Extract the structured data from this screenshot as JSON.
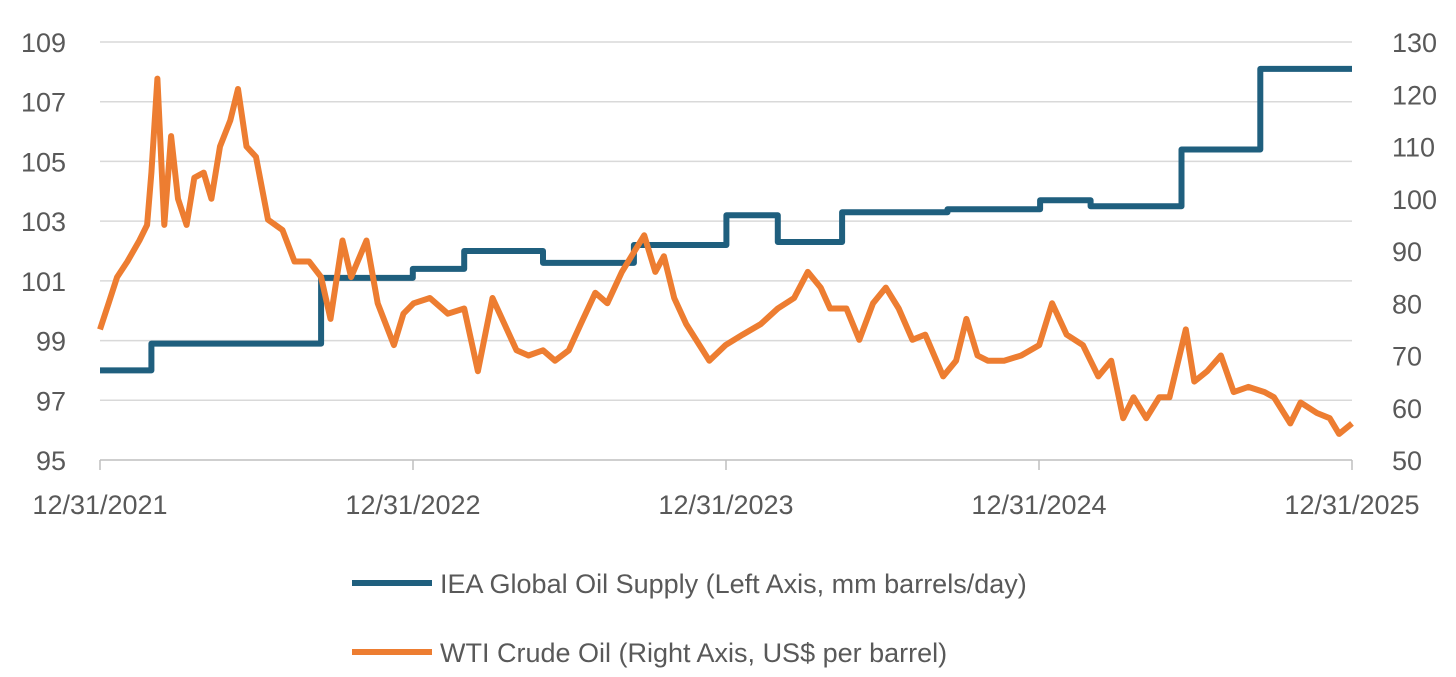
{
  "chart_data": {
    "type": "line",
    "grid": true,
    "x_axis": {
      "type": "date",
      "range": [
        "2021-12-31",
        "2025-12-31"
      ],
      "tick_labels": [
        "12/31/2021",
        "12/31/2022",
        "12/31/2023",
        "12/31/2024",
        "12/31/2025"
      ]
    },
    "y_left": {
      "range": [
        95,
        109
      ],
      "ticks": [
        95,
        97,
        99,
        101,
        103,
        105,
        107,
        109
      ]
    },
    "y_right": {
      "range": [
        50,
        130
      ],
      "ticks": [
        50,
        60,
        70,
        80,
        90,
        100,
        110,
        120,
        130
      ]
    },
    "legend": {
      "placement": "bottom"
    },
    "series": [
      {
        "name": "IEA Global Oil Supply (Left Axis, mm barrels/day)",
        "axis": "left",
        "color": "#1f5f7e",
        "step": true,
        "points": [
          [
            "2021-12-31",
            98.0
          ],
          [
            "2022-03-01",
            98.9
          ],
          [
            "2022-09-15",
            101.1
          ],
          [
            "2022-12-31",
            101.4
          ],
          [
            "2023-03-01",
            102.0
          ],
          [
            "2023-06-01",
            101.6
          ],
          [
            "2023-09-15",
            102.2
          ],
          [
            "2024-01-01",
            103.2
          ],
          [
            "2024-03-01",
            102.3
          ],
          [
            "2024-05-15",
            103.3
          ],
          [
            "2024-09-15",
            103.4
          ],
          [
            "2025-01-01",
            103.7
          ],
          [
            "2025-03-01",
            103.5
          ],
          [
            "2025-06-15",
            105.4
          ],
          [
            "2025-09-15",
            108.1
          ],
          [
            "2025-12-31",
            108.1
          ]
        ]
      },
      {
        "name": "WTI Crude Oil (Right Axis, US$ per barrel)",
        "axis": "right",
        "color": "#ed7d31",
        "points": [
          [
            "2021-12-31",
            75
          ],
          [
            "2022-01-10",
            80
          ],
          [
            "2022-01-20",
            85
          ],
          [
            "2022-02-01",
            88
          ],
          [
            "2022-02-15",
            92
          ],
          [
            "2022-02-24",
            95
          ],
          [
            "2022-03-01",
            105
          ],
          [
            "2022-03-08",
            123
          ],
          [
            "2022-03-16",
            95
          ],
          [
            "2022-03-24",
            112
          ],
          [
            "2022-04-01",
            100
          ],
          [
            "2022-04-11",
            95
          ],
          [
            "2022-04-20",
            104
          ],
          [
            "2022-05-01",
            105
          ],
          [
            "2022-05-10",
            100
          ],
          [
            "2022-05-20",
            110
          ],
          [
            "2022-06-01",
            115
          ],
          [
            "2022-06-10",
            121
          ],
          [
            "2022-06-20",
            110
          ],
          [
            "2022-07-01",
            108
          ],
          [
            "2022-07-15",
            96
          ],
          [
            "2022-08-01",
            94
          ],
          [
            "2022-08-15",
            88
          ],
          [
            "2022-09-01",
            88
          ],
          [
            "2022-09-15",
            85
          ],
          [
            "2022-09-26",
            77
          ],
          [
            "2022-10-10",
            92
          ],
          [
            "2022-10-20",
            85
          ],
          [
            "2022-11-07",
            92
          ],
          [
            "2022-11-20",
            80
          ],
          [
            "2022-12-09",
            72
          ],
          [
            "2022-12-20",
            78
          ],
          [
            "2023-01-01",
            80
          ],
          [
            "2023-01-20",
            81
          ],
          [
            "2023-02-10",
            78
          ],
          [
            "2023-03-01",
            79
          ],
          [
            "2023-03-17",
            67
          ],
          [
            "2023-04-03",
            81
          ],
          [
            "2023-05-01",
            71
          ],
          [
            "2023-05-15",
            70
          ],
          [
            "2023-06-01",
            71
          ],
          [
            "2023-06-15",
            69
          ],
          [
            "2023-07-01",
            71
          ],
          [
            "2023-07-15",
            76
          ],
          [
            "2023-08-01",
            82
          ],
          [
            "2023-08-15",
            80
          ],
          [
            "2023-09-01",
            86
          ],
          [
            "2023-09-27",
            93
          ],
          [
            "2023-10-10",
            86
          ],
          [
            "2023-10-20",
            89
          ],
          [
            "2023-11-01",
            81
          ],
          [
            "2023-11-15",
            76
          ],
          [
            "2023-12-12",
            69
          ],
          [
            "2023-12-31",
            72
          ],
          [
            "2024-01-20",
            74
          ],
          [
            "2024-02-10",
            76
          ],
          [
            "2024-03-01",
            79
          ],
          [
            "2024-03-20",
            81
          ],
          [
            "2024-04-05",
            86
          ],
          [
            "2024-04-20",
            83
          ],
          [
            "2024-05-01",
            79
          ],
          [
            "2024-05-20",
            79
          ],
          [
            "2024-06-04",
            73
          ],
          [
            "2024-06-20",
            80
          ],
          [
            "2024-07-05",
            83
          ],
          [
            "2024-07-20",
            79
          ],
          [
            "2024-08-05",
            73
          ],
          [
            "2024-08-20",
            74
          ],
          [
            "2024-09-10",
            66
          ],
          [
            "2024-09-25",
            69
          ],
          [
            "2024-10-07",
            77
          ],
          [
            "2024-10-20",
            70
          ],
          [
            "2024-11-01",
            69
          ],
          [
            "2024-11-20",
            69
          ],
          [
            "2024-12-10",
            70
          ],
          [
            "2024-12-31",
            72
          ],
          [
            "2025-01-15",
            80
          ],
          [
            "2025-02-01",
            74
          ],
          [
            "2025-02-20",
            72
          ],
          [
            "2025-03-10",
            66
          ],
          [
            "2025-03-25",
            69
          ],
          [
            "2025-04-08",
            58
          ],
          [
            "2025-04-20",
            62
          ],
          [
            "2025-05-05",
            58
          ],
          [
            "2025-05-20",
            62
          ],
          [
            "2025-06-01",
            62
          ],
          [
            "2025-06-20",
            75
          ],
          [
            "2025-06-30",
            65
          ],
          [
            "2025-07-15",
            67
          ],
          [
            "2025-07-31",
            70
          ],
          [
            "2025-08-15",
            63
          ],
          [
            "2025-09-01",
            64
          ],
          [
            "2025-09-20",
            63
          ],
          [
            "2025-10-01",
            62
          ],
          [
            "2025-10-20",
            57
          ],
          [
            "2025-11-01",
            61
          ],
          [
            "2025-11-20",
            59
          ],
          [
            "2025-12-05",
            58
          ],
          [
            "2025-12-16",
            55
          ],
          [
            "2025-12-31",
            57
          ]
        ]
      }
    ]
  }
}
